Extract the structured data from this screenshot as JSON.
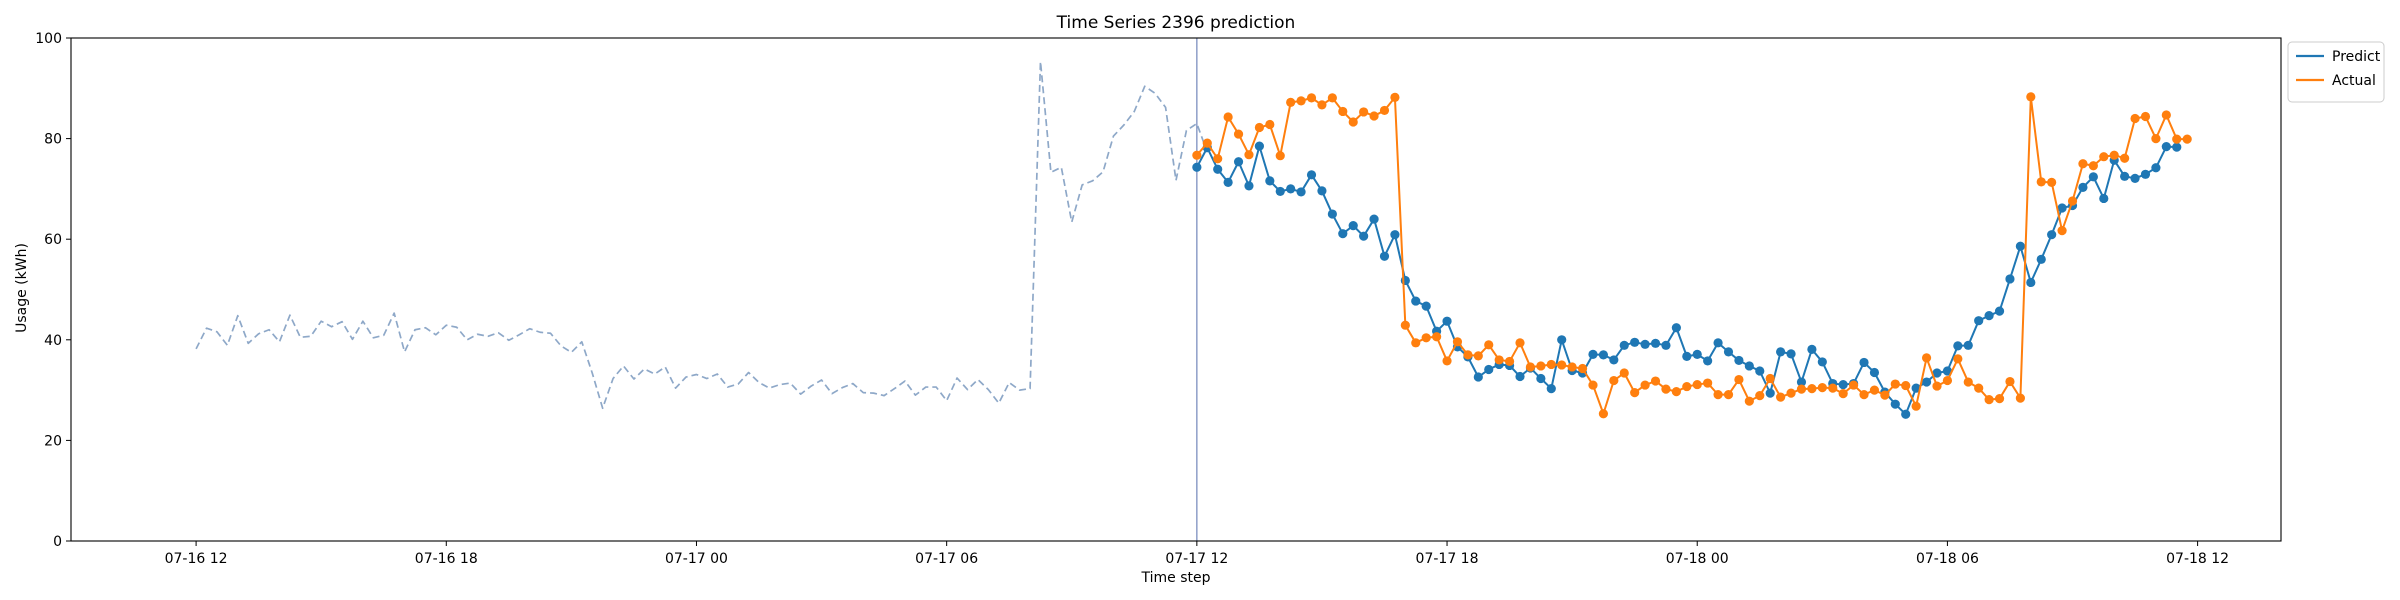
{
  "chart_data": {
    "type": "line",
    "title": "Time Series 2396 prediction",
    "xlabel": "Time step",
    "ylabel": "Usage (kWh)",
    "ylim": [
      0,
      100
    ],
    "xlim": [
      "07-16 09:00",
      "07-18 14:00"
    ],
    "grid": false,
    "legend_position": "upper-right-outside",
    "x_ticks": [
      "07-16 12",
      "07-16 18",
      "07-17 00",
      "07-17 06",
      "07-17 12",
      "07-17 18",
      "07-18 00",
      "07-18 06",
      "07-18 12"
    ],
    "y_ticks": [
      0,
      20,
      40,
      60,
      80,
      100
    ],
    "forecast_start": "07-17 12:00",
    "series": [
      {
        "name": "",
        "style": "dashed",
        "color": "#8EA8C8",
        "x_start": "07-16 12:00",
        "step_minutes": 15,
        "values": [
          38.2,
          42.3,
          41.6,
          38.9,
          44.8,
          39.3,
          41.2,
          42.0,
          39.6,
          44.9,
          40.5,
          40.7,
          43.7,
          42.6,
          43.6,
          40.1,
          43.7,
          40.4,
          40.9,
          45.3,
          37.6,
          42.0,
          42.4,
          41.0,
          42.9,
          42.5,
          40.0,
          41.1,
          40.7,
          41.4,
          39.9,
          41.0,
          42.2,
          41.5,
          41.3,
          38.8,
          37.5,
          39.6,
          33.4,
          26.4,
          32.3,
          34.8,
          32.2,
          34.2,
          33.2,
          34.6,
          30.4,
          32.6,
          33.1,
          32.3,
          33.2,
          30.6,
          31.2,
          33.5,
          31.5,
          30.4,
          31.1,
          31.4,
          29.2,
          30.8,
          32.0,
          29.3,
          30.5,
          31.3,
          29.5,
          29.4,
          28.9,
          30.3,
          31.8,
          29.0,
          30.6,
          30.6,
          27.9,
          32.4,
          30.1,
          32.1,
          30.1,
          27.4,
          31.5,
          30.0,
          30.3,
          95.3,
          73.3,
          74.3,
          63.4,
          70.8,
          71.6,
          73.4,
          80.5,
          82.7,
          85.4,
          90.4,
          89.0,
          86.2,
          71.7,
          81.6,
          83.0,
          77.3
        ]
      },
      {
        "name": "Predict",
        "style": "solid-markers",
        "color": "#1F77B4",
        "x_start": "07-17 12:00",
        "step_minutes": 15,
        "values": [
          74.3,
          78.2,
          73.9,
          71.3,
          75.4,
          70.6,
          78.5,
          71.6,
          69.5,
          70.0,
          69.4,
          72.8,
          69.6,
          65.0,
          61.1,
          62.7,
          60.6,
          64.0,
          56.6,
          60.9,
          51.8,
          47.7,
          46.7,
          41.7,
          43.7,
          38.6,
          36.6,
          32.6,
          34.1,
          35.1,
          34.9,
          32.7,
          34.4,
          32.3,
          30.3,
          40.0,
          33.9,
          33.4,
          37.1,
          37.0,
          36.0,
          38.9,
          39.5,
          39.1,
          39.3,
          38.9,
          42.4,
          36.7,
          37.1,
          35.8,
          39.4,
          37.6,
          35.9,
          34.8,
          33.8,
          29.4,
          37.6,
          37.2,
          31.6,
          38.1,
          35.6,
          31.3,
          31.1,
          31.3,
          35.5,
          33.5,
          29.6,
          27.2,
          25.2,
          30.4,
          31.6,
          33.4,
          33.8,
          38.8,
          38.9,
          43.8,
          44.8,
          45.7,
          52.1,
          58.6,
          51.4,
          56.0,
          60.9,
          66.2,
          66.7,
          70.3,
          72.4,
          68.1,
          75.7,
          72.5,
          72.1,
          72.9,
          74.2,
          78.4,
          78.3
        ]
      },
      {
        "name": "Actual",
        "style": "solid-markers",
        "color": "#FF7F0E",
        "x_start": "07-17 12:00",
        "step_minutes": 15,
        "values": [
          76.7,
          79.1,
          76.0,
          84.3,
          80.9,
          76.8,
          82.2,
          82.8,
          76.6,
          87.2,
          87.5,
          88.1,
          86.7,
          88.1,
          85.4,
          83.3,
          85.3,
          84.5,
          85.6,
          88.2,
          42.9,
          39.4,
          40.4,
          40.6,
          35.8,
          39.6,
          37.0,
          36.8,
          39.0,
          36.0,
          35.7,
          39.4,
          34.6,
          34.8,
          35.1,
          35.0,
          34.6,
          34.3,
          31.0,
          25.3,
          31.9,
          33.4,
          29.5,
          31.0,
          31.8,
          30.2,
          29.7,
          30.7,
          31.1,
          31.4,
          29.1,
          29.1,
          32.1,
          27.8,
          28.9,
          32.3,
          28.6,
          29.4,
          30.2,
          30.3,
          30.5,
          30.4,
          29.3,
          31.0,
          29.1,
          30.0,
          29.0,
          31.2,
          30.9,
          26.8,
          36.4,
          30.8,
          31.9,
          36.2,
          31.6,
          30.4,
          28.1,
          28.3,
          31.7,
          28.4,
          88.3,
          71.4,
          71.3,
          61.7,
          67.6,
          75.0,
          74.6,
          76.4,
          76.7,
          76.1,
          84.0,
          84.4,
          80.0,
          84.7,
          79.9,
          79.9
        ]
      }
    ]
  }
}
